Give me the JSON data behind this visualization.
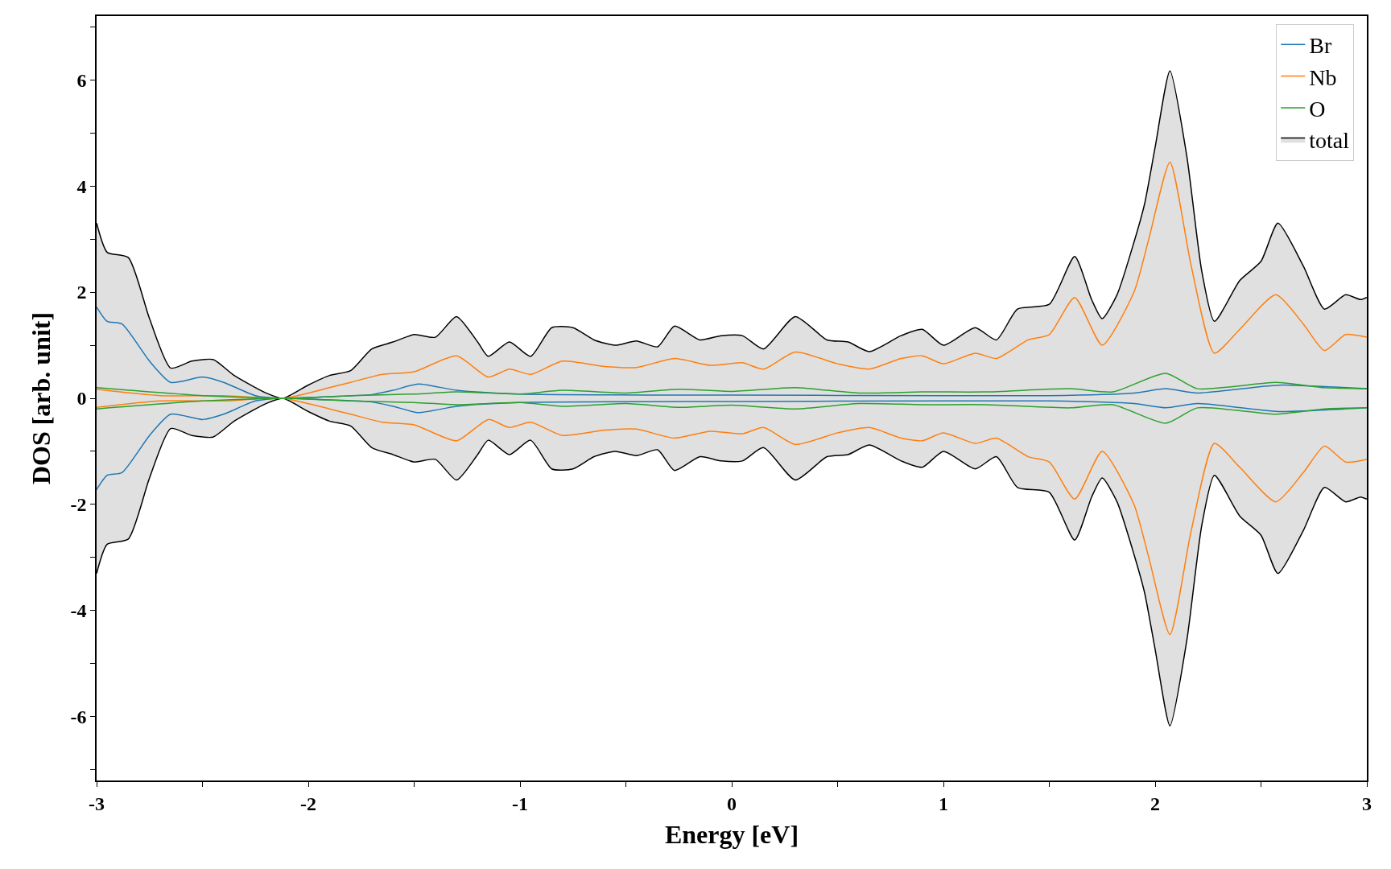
{
  "chart_data": {
    "type": "line",
    "xlabel": "Energy [eV]",
    "ylabel": "DOS [arb. unit]",
    "xlim": [
      -3,
      3
    ],
    "ylim": [
      -7.2,
      7.2
    ],
    "xticks": [
      -3,
      {
        "value": -2.5,
        "label": null
      },
      -2,
      {
        "value": -1.5,
        "label": null
      },
      -1,
      {
        "value": -0.5,
        "label": null
      },
      0,
      {
        "value": 0.5,
        "label": null
      },
      1,
      {
        "value": 1.5,
        "label": null
      },
      2,
      {
        "value": 2.5,
        "label": null
      },
      3
    ],
    "yticks": [
      {
        "value": -7,
        "label": null
      },
      -6,
      {
        "value": -5,
        "label": null
      },
      -4,
      {
        "value": -3,
        "label": null
      },
      -2,
      {
        "value": -1,
        "label": null
      },
      0,
      {
        "value": 1,
        "label": null
      },
      2,
      {
        "value": 3,
        "label": null
      },
      4,
      {
        "value": 5,
        "label": null
      },
      6,
      {
        "value": 7,
        "label": null
      }
    ],
    "legend": "top right",
    "series": [
      {
        "name": "Br",
        "color": "#1f77b4",
        "x": [
          -3,
          -2.95,
          -2.88,
          -2.75,
          -2.65,
          -2.5,
          -2.4,
          -2.25,
          -2.12,
          -1.9,
          -1.7,
          -1.6,
          -1.48,
          -1.3,
          -1,
          0,
          1,
          1.5,
          1.9,
          2.05,
          2.2,
          2.5,
          2.6,
          3
        ],
        "values": [
          1.72,
          1.45,
          1.4,
          0.7,
          0.3,
          0.4,
          0.3,
          0.05,
          0,
          0.03,
          0.07,
          0.15,
          0.27,
          0.15,
          0.08,
          0.06,
          0.05,
          0.05,
          0.1,
          0.18,
          0.1,
          0.22,
          0.25,
          0.18
        ]
      },
      {
        "color": "#1f77b4",
        "x": [
          -3,
          -2.95,
          -2.88,
          -2.75,
          -2.65,
          -2.5,
          -2.4,
          -2.25,
          -2.12,
          -1.9,
          -1.7,
          -1.6,
          -1.48,
          -1.3,
          -1,
          0,
          1,
          1.5,
          1.9,
          2.05,
          2.2,
          2.5,
          2.6,
          3
        ],
        "values": [
          -1.72,
          -1.45,
          -1.4,
          -0.7,
          -0.3,
          -0.4,
          -0.3,
          -0.05,
          0,
          -0.03,
          -0.07,
          -0.15,
          -0.27,
          -0.15,
          -0.08,
          -0.06,
          -0.05,
          -0.05,
          -0.1,
          -0.18,
          -0.1,
          -0.22,
          -0.25,
          -0.18
        ]
      },
      {
        "name": "Nb",
        "color": "#ff7f0e",
        "x": [
          -3,
          -2.7,
          -2.4,
          -2.12,
          -1.9,
          -1.8,
          -1.65,
          -1.5,
          -1.3,
          -1.15,
          -1.05,
          -0.95,
          -0.8,
          -0.6,
          -0.45,
          -0.27,
          -0.1,
          0.05,
          0.15,
          0.3,
          0.5,
          0.65,
          0.8,
          0.9,
          1,
          1.15,
          1.25,
          1.4,
          1.5,
          1.62,
          1.75,
          1.9,
          1.97,
          2.07,
          2.17,
          2.28,
          2.4,
          2.57,
          2.7,
          2.8,
          2.9,
          3
        ],
        "values": [
          0.17,
          0.05,
          0.05,
          0,
          0.2,
          0.3,
          0.45,
          0.5,
          0.8,
          0.4,
          0.55,
          0.45,
          0.7,
          0.6,
          0.58,
          0.75,
          0.62,
          0.67,
          0.55,
          0.87,
          0.65,
          0.55,
          0.75,
          0.8,
          0.65,
          0.85,
          0.75,
          1.1,
          1.2,
          1.9,
          1.0,
          2.0,
          3.0,
          4.45,
          2.5,
          0.85,
          1.3,
          1.95,
          1.4,
          0.9,
          1.2,
          1.15
        ]
      },
      {
        "color": "#ff7f0e",
        "x": [
          -3,
          -2.7,
          -2.4,
          -2.12,
          -1.9,
          -1.8,
          -1.65,
          -1.5,
          -1.3,
          -1.15,
          -1.05,
          -0.95,
          -0.8,
          -0.6,
          -0.45,
          -0.27,
          -0.1,
          0.05,
          0.15,
          0.3,
          0.5,
          0.65,
          0.8,
          0.9,
          1,
          1.15,
          1.25,
          1.4,
          1.5,
          1.62,
          1.75,
          1.9,
          1.97,
          2.07,
          2.17,
          2.28,
          2.4,
          2.57,
          2.7,
          2.8,
          2.9,
          3
        ],
        "values": [
          -0.17,
          -0.05,
          -0.05,
          0,
          -0.2,
          -0.3,
          -0.45,
          -0.5,
          -0.8,
          -0.4,
          -0.55,
          -0.45,
          -0.7,
          -0.6,
          -0.58,
          -0.75,
          -0.62,
          -0.67,
          -0.55,
          -0.87,
          -0.65,
          -0.55,
          -0.75,
          -0.8,
          -0.65,
          -0.85,
          -0.75,
          -1.1,
          -1.2,
          -1.9,
          -1.0,
          -2.0,
          -3.0,
          -4.45,
          -2.5,
          -0.85,
          -1.3,
          -1.95,
          -1.4,
          -0.9,
          -1.2,
          -1.15
        ]
      },
      {
        "name": "O",
        "color": "#2ca02c",
        "x": [
          -3,
          -2.5,
          -2.12,
          -1.8,
          -1.5,
          -1.3,
          -1,
          -0.8,
          -0.5,
          -0.25,
          0,
          0.3,
          0.6,
          0.9,
          1.2,
          1.6,
          1.8,
          2.05,
          2.2,
          2.57,
          2.8,
          3
        ],
        "values": [
          0.2,
          0.05,
          0,
          0.05,
          0.08,
          0.12,
          0.08,
          0.15,
          0.1,
          0.17,
          0.13,
          0.2,
          0.1,
          0.12,
          0.12,
          0.18,
          0.12,
          0.47,
          0.18,
          0.3,
          0.2,
          0.18
        ]
      },
      {
        "color": "#2ca02c",
        "x": [
          -3,
          -2.5,
          -2.12,
          -1.8,
          -1.5,
          -1.3,
          -1,
          -0.8,
          -0.5,
          -0.25,
          0,
          0.3,
          0.6,
          0.9,
          1.2,
          1.6,
          1.8,
          2.05,
          2.2,
          2.57,
          2.8,
          3
        ],
        "values": [
          -0.2,
          -0.05,
          0,
          -0.05,
          -0.08,
          -0.12,
          -0.08,
          -0.15,
          -0.1,
          -0.17,
          -0.13,
          -0.2,
          -0.1,
          -0.12,
          -0.12,
          -0.18,
          -0.12,
          -0.47,
          -0.18,
          -0.3,
          -0.2,
          -0.18
        ]
      },
      {
        "name": "total",
        "type": "area",
        "color": "#000000",
        "x": [
          -3,
          -2.95,
          -2.85,
          -2.75,
          -2.65,
          -2.55,
          -2.45,
          -2.35,
          -2.2,
          -2.12,
          -2,
          -1.9,
          -1.8,
          -1.7,
          -1.6,
          -1.5,
          -1.4,
          -1.3,
          -1.2,
          -1.15,
          -1.05,
          -0.95,
          -0.85,
          -0.75,
          -0.65,
          -0.55,
          -0.45,
          -0.35,
          -0.27,
          -0.15,
          -0.05,
          0.05,
          0.15,
          0.3,
          0.45,
          0.55,
          0.65,
          0.8,
          0.9,
          1,
          1.15,
          1.25,
          1.35,
          1.5,
          1.62,
          1.7,
          1.75,
          1.82,
          1.9,
          1.95,
          2,
          2.07,
          2.15,
          2.22,
          2.28,
          2.4,
          2.5,
          2.58,
          2.7,
          2.8,
          2.9,
          2.97,
          3
        ],
        "values": [
          3.3,
          2.75,
          2.65,
          1.5,
          0.57,
          0.7,
          0.73,
          0.43,
          0.1,
          0,
          0.25,
          0.43,
          0.52,
          0.93,
          1.06,
          1.2,
          1.15,
          1.54,
          1.06,
          0.79,
          1.06,
          0.79,
          1.33,
          1.33,
          1.1,
          1.0,
          1.08,
          0.97,
          1.36,
          1.1,
          1.18,
          1.18,
          0.93,
          1.54,
          1.1,
          1.06,
          0.88,
          1.18,
          1.3,
          1.0,
          1.33,
          1.1,
          1.68,
          1.77,
          2.67,
          1.86,
          1.5,
          1.95,
          2.94,
          3.66,
          4.73,
          6.17,
          4.55,
          2.4,
          1.45,
          2.22,
          2.58,
          3.3,
          2.49,
          1.68,
          1.95,
          1.86,
          1.9
        ]
      },
      {
        "type": "area",
        "color": "#000000",
        "x": [
          -3,
          -2.95,
          -2.85,
          -2.75,
          -2.65,
          -2.55,
          -2.45,
          -2.35,
          -2.2,
          -2.12,
          -2,
          -1.9,
          -1.8,
          -1.7,
          -1.6,
          -1.5,
          -1.4,
          -1.3,
          -1.2,
          -1.15,
          -1.05,
          -0.95,
          -0.85,
          -0.75,
          -0.65,
          -0.55,
          -0.45,
          -0.35,
          -0.27,
          -0.15,
          -0.05,
          0.05,
          0.15,
          0.3,
          0.45,
          0.55,
          0.65,
          0.8,
          0.9,
          1,
          1.15,
          1.25,
          1.35,
          1.5,
          1.62,
          1.7,
          1.75,
          1.82,
          1.9,
          1.95,
          2,
          2.07,
          2.15,
          2.22,
          2.28,
          2.4,
          2.5,
          2.58,
          2.7,
          2.8,
          2.9,
          2.97,
          3
        ],
        "values": [
          -3.3,
          -2.75,
          -2.65,
          -1.5,
          -0.57,
          -0.7,
          -0.73,
          -0.43,
          -0.1,
          0,
          -0.25,
          -0.43,
          -0.52,
          -0.93,
          -1.06,
          -1.2,
          -1.15,
          -1.54,
          -1.06,
          -0.79,
          -1.06,
          -0.79,
          -1.33,
          -1.33,
          -1.1,
          -1.0,
          -1.08,
          -0.97,
          -1.36,
          -1.1,
          -1.18,
          -1.18,
          -0.93,
          -1.54,
          -1.1,
          -1.06,
          -0.88,
          -1.18,
          -1.3,
          -1.0,
          -1.33,
          -1.1,
          -1.68,
          -1.77,
          -2.67,
          -1.86,
          -1.5,
          -1.95,
          -2.94,
          -3.66,
          -4.73,
          -6.17,
          -4.55,
          -2.4,
          -1.45,
          -2.22,
          -2.58,
          -3.3,
          -2.49,
          -1.68,
          -1.95,
          -1.86,
          -1.9
        ]
      }
    ]
  }
}
